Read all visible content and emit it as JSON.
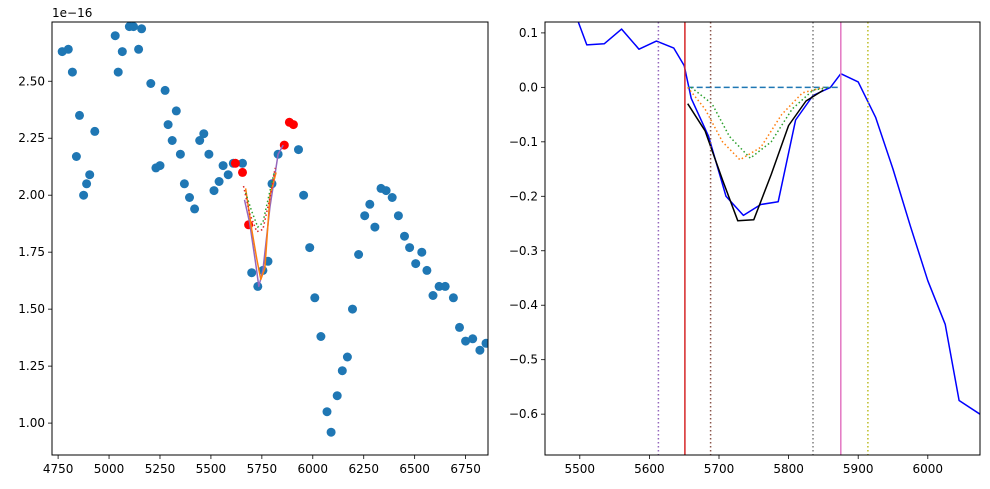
{
  "chart_data": [
    {
      "type": "scatter",
      "title": "",
      "xlabel": "",
      "ylabel": "",
      "y_offset_label": "1e−16",
      "xlim": [
        4720,
        6860
      ],
      "ylim": [
        0.86,
        2.76
      ],
      "xticks": [
        4750,
        5000,
        5250,
        5500,
        5750,
        6000,
        6250,
        6500,
        6750
      ],
      "xtick_labels": [
        "4750",
        "5000",
        "5250",
        "5500",
        "5750",
        "6000",
        "6250",
        "6500",
        "6750"
      ],
      "yticks": [
        1.0,
        1.25,
        1.5,
        1.75,
        2.0,
        2.25,
        2.5
      ],
      "ytick_labels": [
        "1.00",
        "1.25",
        "1.50",
        "1.75",
        "2.00",
        "2.25",
        "2.50"
      ],
      "grid": false,
      "series": [
        {
          "kind": "scatter",
          "color": "#1f77b4",
          "points": [
            [
              4770,
              2.63
            ],
            [
              4800,
              2.64
            ],
            [
              4820,
              2.54
            ],
            [
              4840,
              2.17
            ],
            [
              4855,
              2.35
            ],
            [
              4875,
              2.0
            ],
            [
              4890,
              2.05
            ],
            [
              4905,
              2.09
            ],
            [
              4930,
              2.28
            ],
            [
              5030,
              2.7
            ],
            [
              5045,
              2.54
            ],
            [
              5065,
              2.63
            ],
            [
              5100,
              2.74
            ],
            [
              5120,
              2.74
            ],
            [
              5145,
              2.64
            ],
            [
              5160,
              2.73
            ],
            [
              5205,
              2.49
            ],
            [
              5230,
              2.12
            ],
            [
              5250,
              2.13
            ],
            [
              5275,
              2.46
            ],
            [
              5290,
              2.31
            ],
            [
              5310,
              2.24
            ],
            [
              5330,
              2.37
            ],
            [
              5350,
              2.18
            ],
            [
              5370,
              2.05
            ],
            [
              5395,
              1.99
            ],
            [
              5420,
              1.94
            ],
            [
              5445,
              2.24
            ],
            [
              5465,
              2.27
            ],
            [
              5490,
              2.18
            ],
            [
              5515,
              2.02
            ],
            [
              5540,
              2.06
            ],
            [
              5560,
              2.13
            ],
            [
              5585,
              2.09
            ],
            [
              5610,
              2.14
            ],
            [
              5655,
              2.14
            ],
            [
              5700,
              1.66
            ],
            [
              5730,
              1.6
            ],
            [
              5755,
              1.67
            ],
            [
              5780,
              1.71
            ],
            [
              5800,
              2.05
            ],
            [
              5830,
              2.18
            ],
            [
              5930,
              2.2
            ],
            [
              5955,
              2.0
            ],
            [
              5985,
              1.77
            ],
            [
              6010,
              1.55
            ],
            [
              6040,
              1.38
            ],
            [
              6070,
              1.05
            ],
            [
              6090,
              0.96
            ],
            [
              6120,
              1.12
            ],
            [
              6145,
              1.23
            ],
            [
              6170,
              1.29
            ],
            [
              6195,
              1.5
            ],
            [
              6225,
              1.74
            ],
            [
              6255,
              1.91
            ],
            [
              6280,
              1.96
            ],
            [
              6305,
              1.86
            ],
            [
              6335,
              2.03
            ],
            [
              6360,
              2.02
            ],
            [
              6390,
              1.99
            ],
            [
              6420,
              1.91
            ],
            [
              6450,
              1.82
            ],
            [
              6475,
              1.77
            ],
            [
              6505,
              1.7
            ],
            [
              6535,
              1.75
            ],
            [
              6560,
              1.67
            ],
            [
              6590,
              1.56
            ],
            [
              6620,
              1.6
            ],
            [
              6650,
              1.6
            ],
            [
              6690,
              1.55
            ],
            [
              6720,
              1.42
            ],
            [
              6750,
              1.36
            ],
            [
              6785,
              1.37
            ],
            [
              6820,
              1.32
            ],
            [
              6850,
              1.35
            ]
          ]
        },
        {
          "kind": "scatter",
          "color": "#ff0000",
          "points": [
            [
              5620,
              2.14
            ],
            [
              5655,
              2.1
            ],
            [
              5685,
              1.87
            ],
            [
              5860,
              2.22
            ],
            [
              5885,
              2.32
            ],
            [
              5905,
              2.31
            ]
          ]
        },
        {
          "kind": "line",
          "color": "#9467bd",
          "style": "solid",
          "points": [
            [
              5665,
              1.98
            ],
            [
              5690,
              1.88
            ],
            [
              5720,
              1.7
            ],
            [
              5735,
              1.6
            ],
            [
              5755,
              1.67
            ],
            [
              5790,
              1.95
            ],
            [
              5830,
              2.18
            ],
            [
              5855,
              2.22
            ]
          ]
        },
        {
          "kind": "line",
          "color": "#ff7f0e",
          "style": "solid",
          "points": [
            [
              5670,
              2.03
            ],
            [
              5700,
              1.85
            ],
            [
              5725,
              1.72
            ],
            [
              5745,
              1.63
            ],
            [
              5765,
              1.68
            ],
            [
              5790,
              2.0
            ],
            [
              5820,
              2.1
            ]
          ]
        },
        {
          "kind": "line",
          "color": "#2ca02c",
          "style": "dotted",
          "points": [
            [
              5670,
              2.01
            ],
            [
              5700,
              1.93
            ],
            [
              5730,
              1.86
            ],
            [
              5755,
              1.88
            ],
            [
              5785,
              2.0
            ],
            [
              5810,
              2.1
            ]
          ]
        },
        {
          "kind": "line",
          "color": "#d62728",
          "style": "dotted",
          "points": [
            [
              5660,
              2.04
            ],
            [
              5690,
              1.92
            ],
            [
              5725,
              1.84
            ],
            [
              5755,
              1.85
            ],
            [
              5790,
              1.99
            ],
            [
              5815,
              2.12
            ]
          ]
        }
      ]
    },
    {
      "type": "line",
      "title": "",
      "xlabel": "",
      "ylabel": "",
      "xlim": [
        5450,
        6075
      ],
      "ylim": [
        -0.675,
        0.12
      ],
      "xticks": [
        5500,
        5600,
        5700,
        5800,
        5900,
        6000
      ],
      "xtick_labels": [
        "5500",
        "5600",
        "5700",
        "5800",
        "5900",
        "6000"
      ],
      "yticks": [
        0.1,
        0.0,
        -0.1,
        -0.2,
        -0.3,
        -0.4,
        -0.5,
        -0.6
      ],
      "ytick_labels": [
        "0.1",
        "0.0",
        "−0.1",
        "−0.2",
        "−0.3",
        "−0.4",
        "−0.5",
        "−0.6"
      ],
      "grid": false,
      "series": [
        {
          "kind": "line",
          "color": "#0000ff",
          "style": "solid",
          "points": [
            [
              5495,
              0.13
            ],
            [
              5510,
              0.078
            ],
            [
              5535,
              0.08
            ],
            [
              5560,
              0.107
            ],
            [
              5585,
              0.07
            ],
            [
              5610,
              0.085
            ],
            [
              5635,
              0.072
            ],
            [
              5650,
              0.04
            ],
            [
              5660,
              -0.02
            ],
            [
              5685,
              -0.09
            ],
            [
              5710,
              -0.2
            ],
            [
              5735,
              -0.235
            ],
            [
              5760,
              -0.215
            ],
            [
              5785,
              -0.21
            ],
            [
              5810,
              -0.06
            ],
            [
              5835,
              -0.015
            ],
            [
              5860,
              0.0
            ],
            [
              5875,
              0.025
            ],
            [
              5900,
              0.01
            ],
            [
              5925,
              -0.055
            ],
            [
              5950,
              -0.15
            ],
            [
              5975,
              -0.255
            ],
            [
              6000,
              -0.355
            ],
            [
              6025,
              -0.435
            ],
            [
              6045,
              -0.575
            ],
            [
              6075,
              -0.6
            ]
          ]
        },
        {
          "kind": "line",
          "color": "#1f77b4",
          "style": "dashed",
          "points": [
            [
              5655,
              0.0
            ],
            [
              5875,
              0.0
            ]
          ]
        },
        {
          "kind": "line",
          "color": "#000000",
          "style": "solid",
          "points": [
            [
              5655,
              -0.03
            ],
            [
              5680,
              -0.08
            ],
            [
              5705,
              -0.17
            ],
            [
              5727,
              -0.245
            ],
            [
              5750,
              -0.243
            ],
            [
              5775,
              -0.16
            ],
            [
              5800,
              -0.07
            ],
            [
              5825,
              -0.025
            ],
            [
              5850,
              -0.005
            ]
          ]
        },
        {
          "kind": "line",
          "color": "#ff7f0e",
          "style": "dotted",
          "points": [
            [
              5655,
              0.0
            ],
            [
              5680,
              -0.04
            ],
            [
              5705,
              -0.1
            ],
            [
              5730,
              -0.133
            ],
            [
              5760,
              -0.11
            ],
            [
              5790,
              -0.05
            ],
            [
              5820,
              -0.01
            ],
            [
              5850,
              0.0
            ]
          ]
        },
        {
          "kind": "line",
          "color": "#2ca02c",
          "style": "dotted",
          "points": [
            [
              5660,
              0.0
            ],
            [
              5690,
              -0.03
            ],
            [
              5715,
              -0.09
            ],
            [
              5745,
              -0.13
            ],
            [
              5775,
              -0.1
            ],
            [
              5805,
              -0.04
            ],
            [
              5835,
              -0.005
            ],
            [
              5860,
              0.0
            ]
          ]
        },
        {
          "kind": "vline",
          "color": "#9467bd",
          "style": "dotted",
          "x": 5613
        },
        {
          "kind": "vline",
          "color": "#d62728",
          "style": "solid",
          "x": 5651
        },
        {
          "kind": "vline",
          "color": "#8c564b",
          "style": "dotted",
          "x": 5688
        },
        {
          "kind": "vline",
          "color": "#7f7f7f",
          "style": "dotted",
          "x": 5835
        },
        {
          "kind": "vline",
          "color": "#e377c2",
          "style": "solid",
          "x": 5875
        },
        {
          "kind": "vline",
          "color": "#bcbd22",
          "style": "dotted",
          "x": 5914
        }
      ]
    }
  ]
}
